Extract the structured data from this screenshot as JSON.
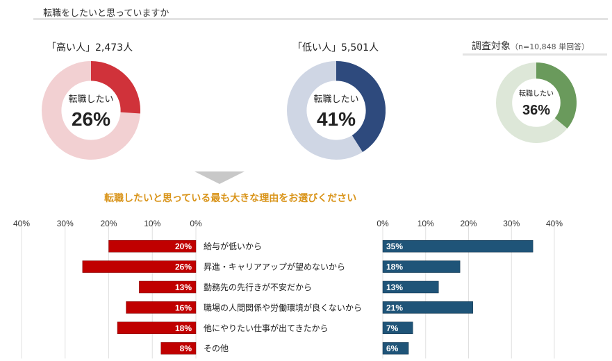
{
  "header": {
    "title": "転職をしたいと思っていますか"
  },
  "donuts": [
    {
      "label": "「高い人」2,473人",
      "center_label": "転職したい",
      "value": 26,
      "value_text": "26%",
      "color": "#d0323a",
      "track_color": "#f2d0d2"
    },
    {
      "label": "「低い人」5,501人",
      "center_label": "転職したい",
      "value": 41,
      "value_text": "41%",
      "color": "#2e4a7d",
      "track_color": "#cfd6e4"
    },
    {
      "label": "調査対象",
      "note": "（n=10,848 単回答）",
      "center_label": "転職したい",
      "value": 36,
      "value_text": "36%",
      "color": "#6a9a5c",
      "track_color": "#dde7d8"
    }
  ],
  "question": "転職したいと思っている最も大きな理由をお選びください",
  "chart_data": {
    "type": "bar",
    "categories": [
      "給与が低いから",
      "昇進・キャリアアップが望めないから",
      "勤務先の先行きが不安だから",
      "職場の人間関係や労働環境が良くないから",
      "他にやりたい仕事が出てきたから",
      "その他"
    ],
    "series": [
      {
        "values": [
          20,
          26,
          13,
          16,
          18,
          8
        ],
        "labels": [
          "20%",
          "26%",
          "13%",
          "16%",
          "18%",
          "8%"
        ],
        "color": "#c00000"
      },
      {
        "values": [
          35,
          18,
          13,
          21,
          7,
          6
        ],
        "labels": [
          "35%",
          "18%",
          "13%",
          "21%",
          "7%",
          "6%"
        ],
        "color": "#1f5478"
      }
    ],
    "left_ticks": [
      "40%",
      "30%",
      "20%",
      "10%",
      "0%"
    ],
    "right_ticks": [
      "0%",
      "10%",
      "20%",
      "30%",
      "40%"
    ],
    "xlim": [
      0,
      40
    ]
  }
}
